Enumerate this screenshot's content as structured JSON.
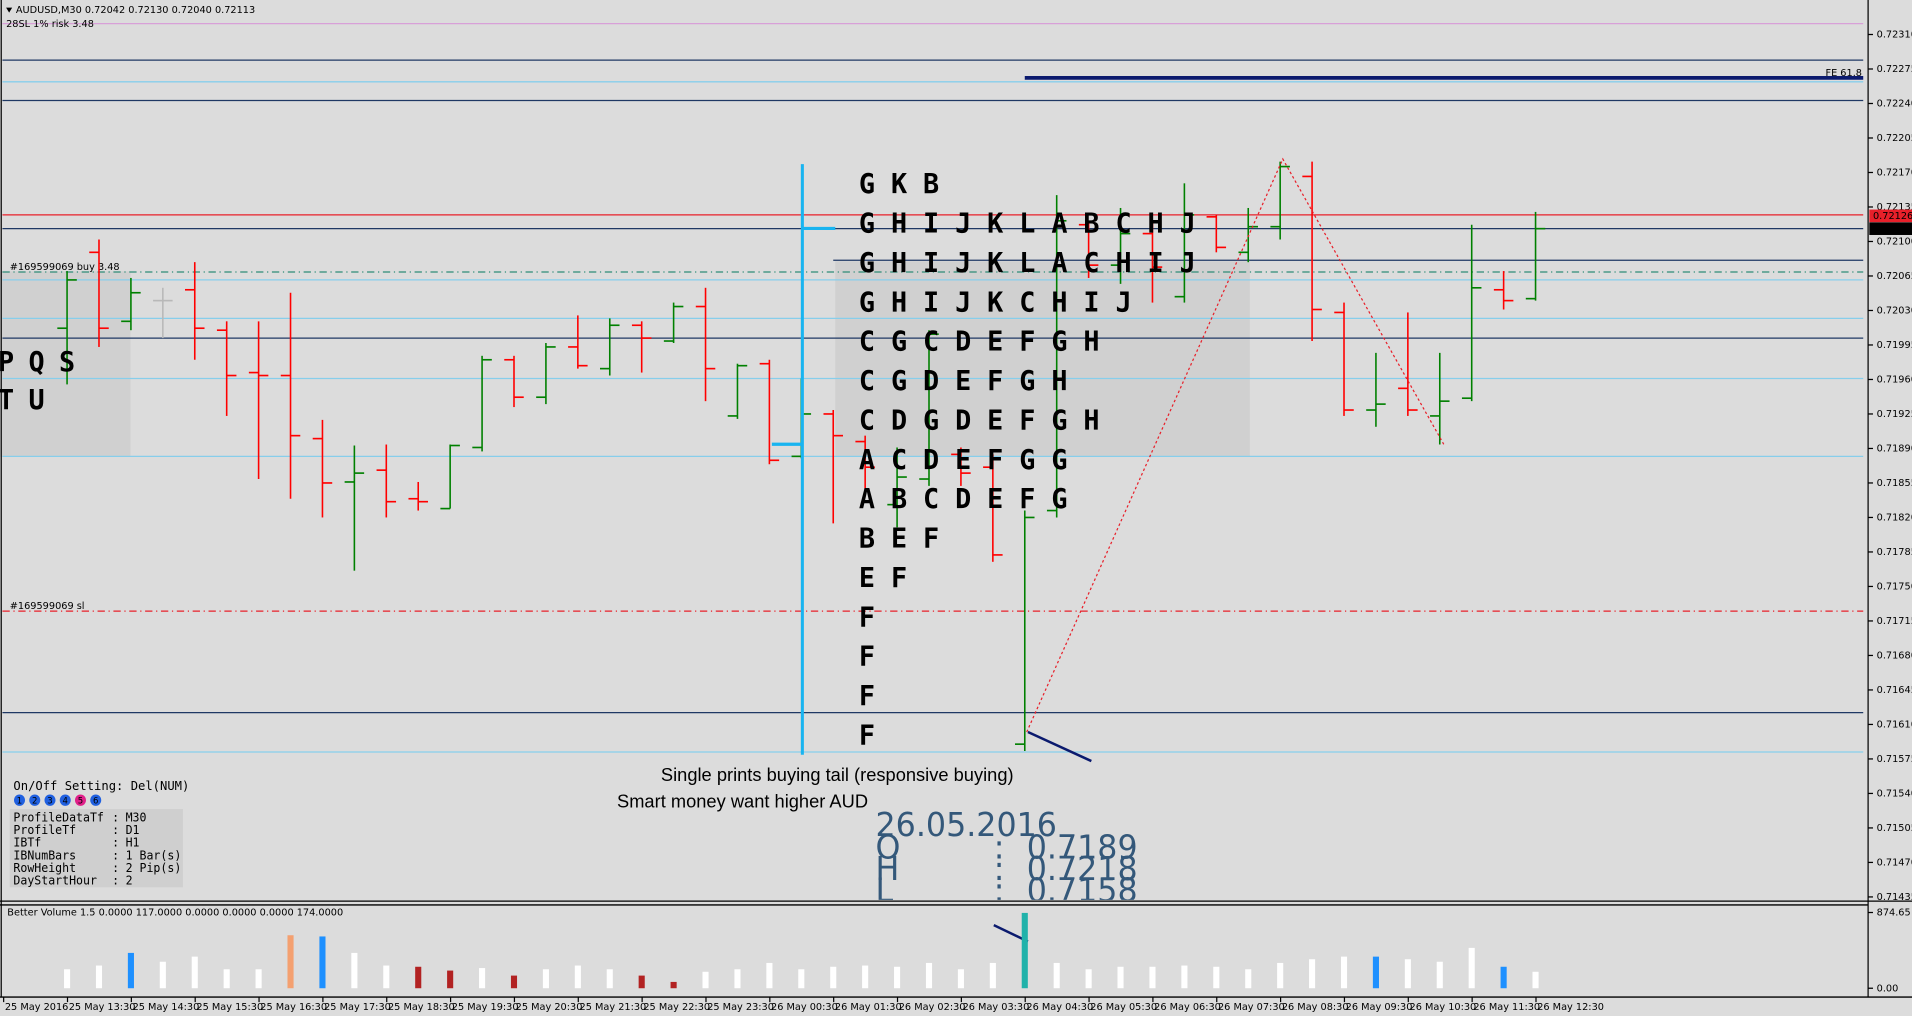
{
  "header": {
    "symbol_line": "AUDUSD,M30  0.72042 0.72130 0.72040 0.72113",
    "risk_line": "28SL    1% risk     3.48"
  },
  "price_axis": {
    "ylim": [
      0.71432,
      0.72345
    ],
    "yticks": [
      {
        "value": 0.7231,
        "label": "0.72310"
      },
      0.72275,
      {
        "value": 0.7224,
        "label": "0.72240"
      },
      0.72205,
      {
        "value": 0.7217,
        "label": "0.72170"
      },
      0.72135,
      {
        "value": 0.721,
        "label": "0.72100"
      },
      0.72065,
      {
        "value": 0.7203,
        "label": "0.72030"
      },
      0.71995,
      {
        "value": 0.7196,
        "label": "0.71960"
      },
      0.71925,
      {
        "value": 0.7189,
        "label": "0.71890"
      },
      0.71855,
      {
        "value": 0.7182,
        "label": "0.71820"
      },
      0.71785,
      {
        "value": 0.7175,
        "label": "0.71750"
      },
      0.71715,
      {
        "value": 0.7168,
        "label": "0.71680"
      },
      0.71645,
      {
        "value": 0.7161,
        "label": "0.71610"
      },
      0.71575,
      {
        "value": 0.7154,
        "label": "0.71540"
      },
      0.71505,
      {
        "value": 0.7147,
        "label": "0.71470"
      },
      0.71435
    ],
    "price_tags": [
      {
        "value": 0.72126,
        "label": "0.72126",
        "color": "#e8202a"
      },
      {
        "value": 0.72113,
        "label": "0.72113",
        "color": "#000000"
      }
    ]
  },
  "time_labels": [
    "25 May 2016",
    "25 May 13:30",
    "25 May 14:30",
    "25 May 15:30",
    "25 May 16:30",
    "25 May 17:30",
    "25 May 18:30",
    "25 May 19:30",
    "25 May 20:30",
    "25 May 21:30",
    "25 May 22:30",
    "25 May 23:30",
    "26 May 00:30",
    "26 May 01:30",
    "26 May 02:30",
    "26 May 03:30",
    "26 May 04:30",
    "26 May 05:30",
    "26 May 06:30",
    "26 May 07:30",
    "26 May 08:30",
    "26 May 09:30",
    "26 May 10:30",
    "26 May 11:30",
    "26 May 12:30"
  ],
  "candles": {
    "up_color": "#008000",
    "down_color": "#ff0000",
    "flat_color": "#b8b8b8",
    "ohlc": [
      [
        0.72012,
        0.7207,
        0.71955,
        0.72061
      ],
      [
        0.72089,
        0.72102,
        0.71993,
        0.72012
      ],
      [
        0.72019,
        0.72063,
        0.7201,
        0.72048
      ],
      [
        0.7204,
        0.72053,
        0.72002,
        0.7204
      ],
      [
        0.72051,
        0.72079,
        0.7198,
        0.72012
      ],
      [
        0.7201,
        0.72019,
        0.71923,
        0.71964
      ],
      [
        0.71967,
        0.72019,
        0.71859,
        0.71964
      ],
      [
        0.71964,
        0.72048,
        0.71839,
        0.71903
      ],
      [
        0.719,
        0.71919,
        0.7182,
        0.71855
      ],
      [
        0.71856,
        0.71893,
        0.71766,
        0.71865
      ],
      [
        0.71868,
        0.71894,
        0.7182,
        0.71836
      ],
      [
        0.71839,
        0.71856,
        0.71827,
        0.71836
      ],
      [
        0.71829,
        0.71894,
        0.71829,
        0.71893
      ],
      [
        0.71891,
        0.71984,
        0.71887,
        0.7198
      ],
      [
        0.7198,
        0.71984,
        0.71932,
        0.71942
      ],
      [
        0.71942,
        0.71997,
        0.71935,
        0.71993
      ],
      [
        0.71993,
        0.72025,
        0.71971,
        0.71974
      ],
      [
        0.71971,
        0.72022,
        0.71964,
        0.72015
      ],
      [
        0.72015,
        0.72019,
        0.71967,
        0.72002
      ],
      [
        0.71999,
        0.72038,
        0.71997,
        0.72034
      ],
      [
        0.72034,
        0.72053,
        0.71938,
        0.71971
      ],
      [
        0.71923,
        0.71976,
        0.7192,
        0.71974
      ],
      [
        0.71976,
        0.7198,
        0.71874,
        0.71878
      ],
      [
        0.71882,
        0.71961,
        0.7188,
        0.71925
      ],
      [
        0.71925,
        0.71929,
        0.71814,
        0.71903
      ],
      [
        0.71897,
        0.71903,
        0.71846,
        0.71871
      ],
      [
        0.71833,
        0.71891,
        0.7181,
        0.71861
      ],
      [
        0.71859,
        0.7201,
        0.71852,
        0.72006
      ],
      [
        0.71884,
        0.71891,
        0.71852,
        0.71865
      ],
      [
        0.71871,
        0.71884,
        0.71775,
        0.71782
      ],
      [
        0.7159,
        0.71827,
        0.71583,
        0.7182
      ],
      [
        0.71827,
        0.72147,
        0.7182,
        0.72121
      ],
      [
        0.72117,
        0.72121,
        0.72063,
        0.72076
      ],
      [
        0.72076,
        0.72134,
        0.72057,
        0.72108
      ],
      [
        0.72108,
        0.72121,
        0.72038,
        0.72074
      ],
      [
        0.72044,
        0.72159,
        0.72038,
        0.72127
      ],
      [
        0.72125,
        0.72127,
        0.72089,
        0.72094
      ],
      [
        0.72089,
        0.72134,
        0.72079,
        0.72115
      ],
      [
        0.72115,
        0.72181,
        0.72102,
        0.72176
      ],
      [
        0.72166,
        0.72181,
        0.71999,
        0.72031
      ],
      [
        0.72028,
        0.72038,
        0.71923,
        0.71929
      ],
      [
        0.71929,
        0.71987,
        0.71912,
        0.71935
      ],
      [
        0.71951,
        0.72028,
        0.71923,
        0.71929
      ],
      [
        0.71923,
        0.71987,
        0.71894,
        0.71938
      ],
      [
        0.71941,
        0.72117,
        0.71938,
        0.72053
      ],
      [
        0.72051,
        0.7207,
        0.72031,
        0.7204
      ],
      [
        0.72042,
        0.7213,
        0.7204,
        0.72113
      ]
    ]
  },
  "levels": [
    {
      "price": 0.72321,
      "color": "#d8a0d8",
      "style": "solid"
    },
    {
      "price": 0.72284,
      "color": "#1f3864",
      "style": "solid"
    },
    {
      "price": 0.72266,
      "color": "#0b1a6e",
      "style": "thick",
      "start_bar": 30,
      "label": "FE 61.8",
      "label_side": "right"
    },
    {
      "price": 0.72262,
      "color": "#87ceeb",
      "style": "solid"
    },
    {
      "price": 0.72243,
      "color": "#1f3864",
      "style": "solid"
    },
    {
      "price": 0.72127,
      "color": "#e8202a",
      "style": "solid"
    },
    {
      "price": 0.72113,
      "color": "#1f3864",
      "style": "solid"
    },
    {
      "price": 0.72081,
      "color": "#1f3864",
      "style": "solid",
      "start_bar": 24
    },
    {
      "price": 0.72069,
      "color": "#2e8b77",
      "style": "dashdot",
      "label": "#169599069 buy 3.48",
      "label_side": "left"
    },
    {
      "price": 0.72061,
      "color": "#87ceeb",
      "style": "solid"
    },
    {
      "price": 0.72022,
      "color": "#87ceeb",
      "style": "solid"
    },
    {
      "price": 0.72002,
      "color": "#1f3864",
      "style": "solid"
    },
    {
      "price": 0.71961,
      "color": "#87ceeb",
      "style": "solid"
    },
    {
      "price": 0.71882,
      "color": "#87ceeb",
      "style": "solid"
    },
    {
      "price": 0.71725,
      "color": "#e8202a",
      "style": "dashdot",
      "label": "#169599069 sl",
      "label_side": "left"
    },
    {
      "price": 0.71622,
      "color": "#1f3864",
      "style": "solid"
    },
    {
      "price": 0.71582,
      "color": "#87ceeb",
      "style": "solid"
    }
  ],
  "profile": {
    "palette": {
      "g": "#008000",
      "r": "#ff0000"
    },
    "rows": [
      {
        "letters": [
          "G",
          "K",
          "B"
        ],
        "colors": "ggr"
      },
      {
        "letters": [
          "G",
          "H",
          "I",
          "J",
          "K",
          "L",
          "A",
          "B",
          "C",
          "H",
          "J"
        ],
        "colors": "ggggggrrrrr"
      },
      {
        "letters": [
          "G",
          "H",
          "I",
          "J",
          "K",
          "L",
          "A",
          "C",
          "H",
          "I",
          "J"
        ],
        "colors": "ggggggrrrrr"
      },
      {
        "letters": [
          "G",
          "H",
          "I",
          "J",
          "K",
          "C",
          "H",
          "I",
          "J"
        ],
        "colors": "gggggrrrr"
      },
      {
        "letters": [
          "C",
          "G",
          "C",
          "D",
          "E",
          "F",
          "G",
          "H"
        ],
        "colors": "ggrrrrrr"
      },
      {
        "letters": [
          "C",
          "G",
          "D",
          "E",
          "F",
          "G",
          "H"
        ],
        "colors": "ggrrrrr"
      },
      {
        "letters": [
          "C",
          "D",
          "G",
          "D",
          "E",
          "F",
          "G",
          "H"
        ],
        "colors": "gggrrrrr"
      },
      {
        "letters": [
          "A",
          "C",
          "D",
          "E",
          "F",
          "G",
          "G"
        ],
        "colors": "ggggggr"
      },
      {
        "letters": [
          "A",
          "B",
          "C",
          "D",
          "E",
          "F",
          "G"
        ],
        "colors": "ggggggg"
      },
      {
        "letters": [
          "B",
          "E",
          "F"
        ],
        "colors": "ggg"
      },
      {
        "letters": [
          "E",
          "F"
        ],
        "colors": "gg"
      },
      {
        "letters": [
          "F"
        ],
        "colors": "g"
      },
      {
        "letters": [
          "F"
        ],
        "colors": "g"
      },
      {
        "letters": [
          "F"
        ],
        "colors": "g"
      },
      {
        "letters": [
          "F"
        ],
        "colors": "g"
      }
    ],
    "left_rows": [
      [
        "P",
        "Q",
        "S"
      ],
      [
        "T",
        "U"
      ]
    ]
  },
  "annotations": [
    "Single prints buying tail (responsive buying)",
    "Smart money want higher AUD"
  ],
  "day_box": {
    "date": "26.05.2016",
    "rows": [
      [
        "O",
        ":",
        "0.7189"
      ],
      [
        "H",
        ":",
        "0.7218"
      ],
      [
        "L",
        ":",
        "0.7158"
      ]
    ]
  },
  "settings": {
    "title": "On/Off Setting: Del(NUM)",
    "buttons": [
      "1",
      "2",
      "3",
      "4",
      "5",
      "6"
    ],
    "rows": [
      [
        "ProfileDataTf",
        ":",
        "M30"
      ],
      [
        "ProfileTf",
        ":",
        "D1"
      ],
      [
        "IBTf",
        ":",
        "H1"
      ],
      [
        "IBNumBars",
        ":",
        "1 Bar(s)"
      ],
      [
        "RowHeight",
        ":",
        "2 Pip(s)"
      ],
      [
        "DayStartHour",
        ":",
        "2"
      ]
    ]
  },
  "volume": {
    "title": "Better Volume 1.5 0.0000 117.0000 0.0000 0.0000 0.0000 174.0000",
    "ylim": [
      0,
      874.65
    ],
    "yticks": [
      874.65,
      {
        "value": 0,
        "label": "0.00"
      }
    ],
    "palette": {
      "w": "#ffffff",
      "b": "#1e90ff",
      "d": "#b22222",
      "s": "#f4a070",
      "t": "#20b2aa"
    },
    "values": [
      219,
      262,
      408,
      306,
      365,
      219,
      219,
      612,
      598,
      408,
      262,
      248,
      204,
      233,
      146,
      219,
      262,
      219,
      146,
      73,
      190,
      219,
      292,
      219,
      248,
      262,
      248,
      292,
      219,
      292,
      870,
      292,
      219,
      248,
      248,
      262,
      248,
      219,
      292,
      335,
      365,
      365,
      335,
      306,
      466,
      248,
      190
    ],
    "colors": "wwbwwwwsbwwddwdwwwddwwwwwwwwwwtwwwwwwwwwwbwwwbw"
  }
}
